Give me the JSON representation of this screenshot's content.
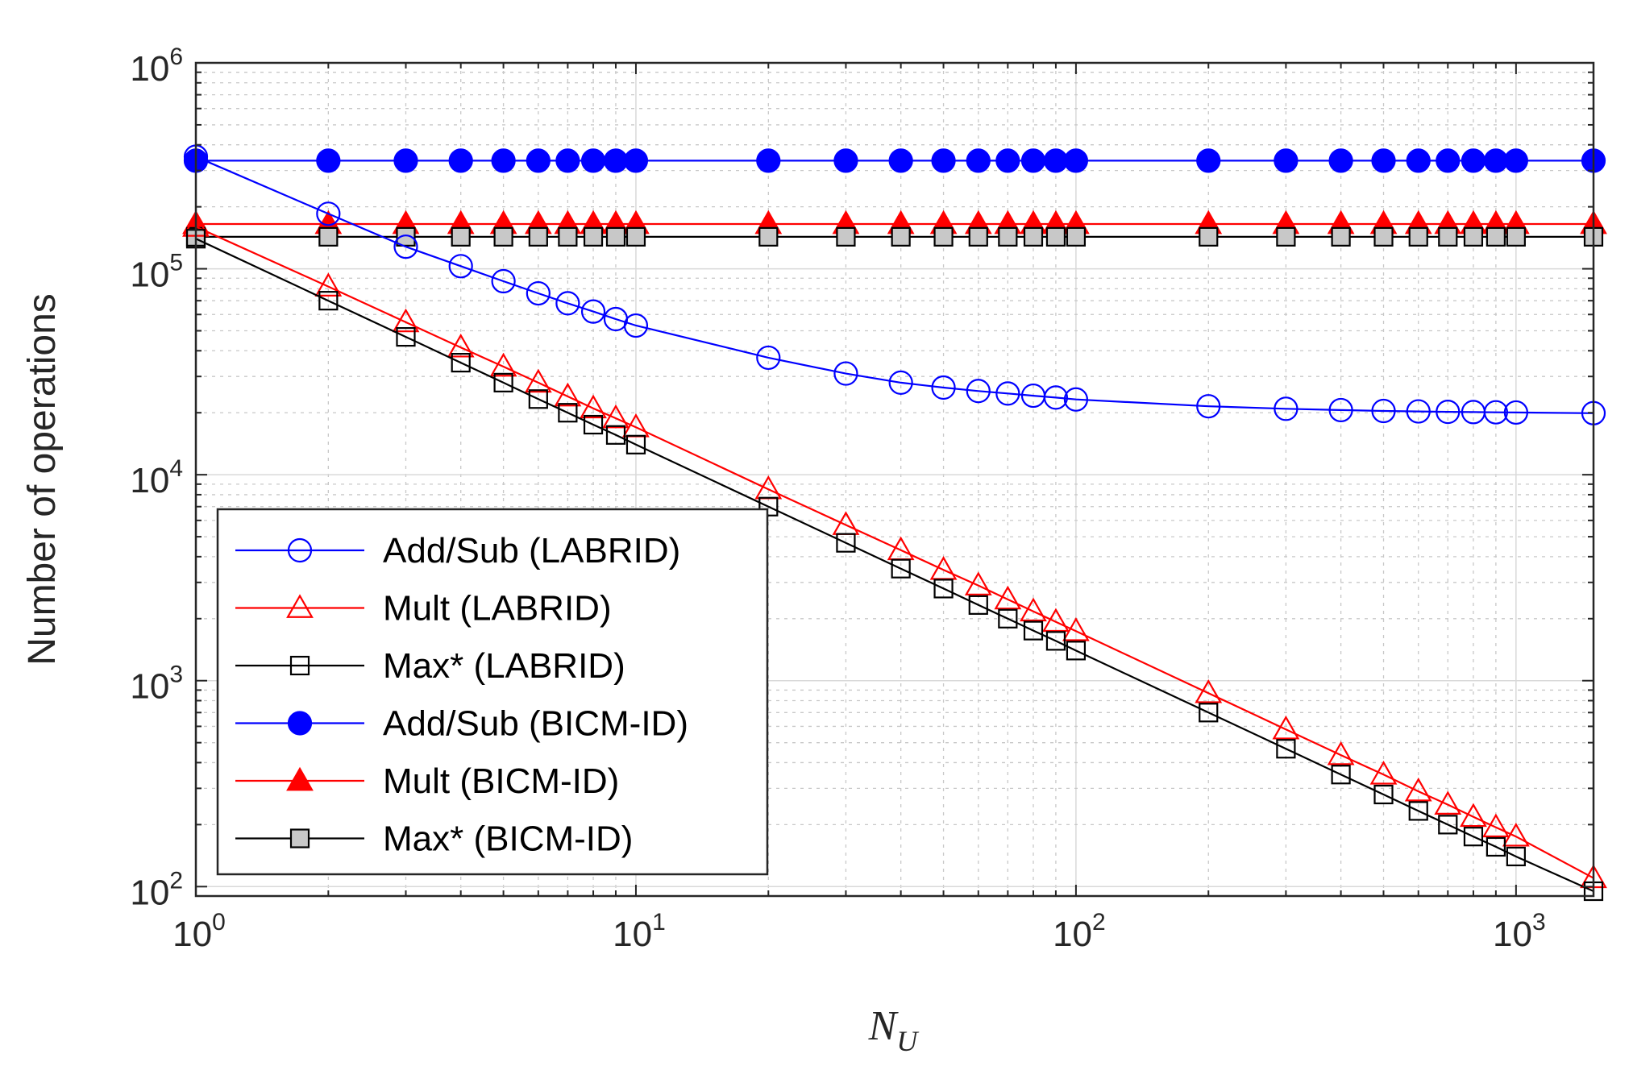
{
  "chart_data": {
    "type": "line",
    "title": "",
    "xlabel": {
      "main": "N",
      "sub": "U"
    },
    "ylabel": "Number of operations",
    "xscale": "log",
    "yscale": "log",
    "xlim": [
      1,
      1500
    ],
    "ylim": [
      90,
      1000000
    ],
    "x_ticks": [
      {
        "base": "10",
        "exp": "0",
        "value": 1
      },
      {
        "base": "10",
        "exp": "1",
        "value": 10
      },
      {
        "base": "10",
        "exp": "2",
        "value": 100
      },
      {
        "base": "10",
        "exp": "3",
        "value": 1000
      }
    ],
    "y_ticks": [
      {
        "base": "10",
        "exp": "2",
        "value": 100
      },
      {
        "base": "10",
        "exp": "3",
        "value": 1000
      },
      {
        "base": "10",
        "exp": "4",
        "value": 10000
      },
      {
        "base": "10",
        "exp": "5",
        "value": 100000
      },
      {
        "base": "10",
        "exp": "6",
        "value": 1000000
      }
    ],
    "grid": true,
    "minor_grid": true,
    "legend_position": "bottom-left",
    "x": [
      1,
      2,
      3,
      4,
      5,
      6,
      7,
      8,
      9,
      10,
      20,
      30,
      40,
      50,
      60,
      70,
      80,
      90,
      100,
      200,
      300,
      400,
      500,
      600,
      700,
      800,
      900,
      1000,
      1500
    ],
    "series": [
      {
        "name": "Add/Sub (LABRID)",
        "color": "#0000ff",
        "marker": "circle",
        "filled": false,
        "values": [
          350000,
          185000,
          128000,
          103000,
          87000,
          76000,
          68000,
          62000,
          57000,
          53000,
          37000,
          31000,
          28000,
          26500,
          25500,
          24800,
          24200,
          23700,
          23200,
          21500,
          20900,
          20600,
          20400,
          20300,
          20200,
          20150,
          20100,
          20050,
          19900
        ]
      },
      {
        "name": "Mult (LABRID)",
        "color": "#ff0000",
        "marker": "triangle",
        "filled": false,
        "values": [
          160000,
          82000,
          55000,
          41500,
          33500,
          28000,
          24000,
          21000,
          18800,
          17000,
          8500,
          5700,
          4300,
          3450,
          2900,
          2480,
          2170,
          1930,
          1740,
          870,
          580,
          435,
          350,
          290,
          250,
          218,
          194,
          175,
          110
        ]
      },
      {
        "name": "Max* (LABRID)",
        "color": "#000000",
        "marker": "square",
        "filled": false,
        "values": [
          140000,
          70000,
          46700,
          35000,
          28000,
          23300,
          20000,
          17500,
          15600,
          14000,
          7000,
          4670,
          3500,
          2800,
          2330,
          2000,
          1750,
          1560,
          1400,
          700,
          467,
          350,
          280,
          233,
          200,
          175,
          156,
          140,
          95
        ]
      },
      {
        "name": "Add/Sub (BICM-ID)",
        "color": "#0000ff",
        "marker": "circle",
        "filled": true,
        "values": [
          335000,
          335000,
          335000,
          335000,
          335000,
          335000,
          335000,
          335000,
          335000,
          335000,
          335000,
          335000,
          335000,
          335000,
          335000,
          335000,
          335000,
          335000,
          335000,
          335000,
          335000,
          335000,
          335000,
          335000,
          335000,
          335000,
          335000,
          335000,
          335000
        ]
      },
      {
        "name": "Mult (BICM-ID)",
        "color": "#ff0000",
        "marker": "triangle",
        "filled": true,
        "values": [
          165000,
          165000,
          165000,
          165000,
          165000,
          165000,
          165000,
          165000,
          165000,
          165000,
          165000,
          165000,
          165000,
          165000,
          165000,
          165000,
          165000,
          165000,
          165000,
          165000,
          165000,
          165000,
          165000,
          165000,
          165000,
          165000,
          165000,
          165000,
          165000
        ]
      },
      {
        "name": "Max* (BICM-ID)",
        "color": "#000000",
        "marker": "square",
        "filled": true,
        "fill_color": "#c8c8c8",
        "values": [
          143000,
          143000,
          143000,
          143000,
          143000,
          143000,
          143000,
          143000,
          143000,
          143000,
          143000,
          143000,
          143000,
          143000,
          143000,
          143000,
          143000,
          143000,
          143000,
          143000,
          143000,
          143000,
          143000,
          143000,
          143000,
          143000,
          143000,
          143000,
          143000
        ]
      }
    ]
  }
}
